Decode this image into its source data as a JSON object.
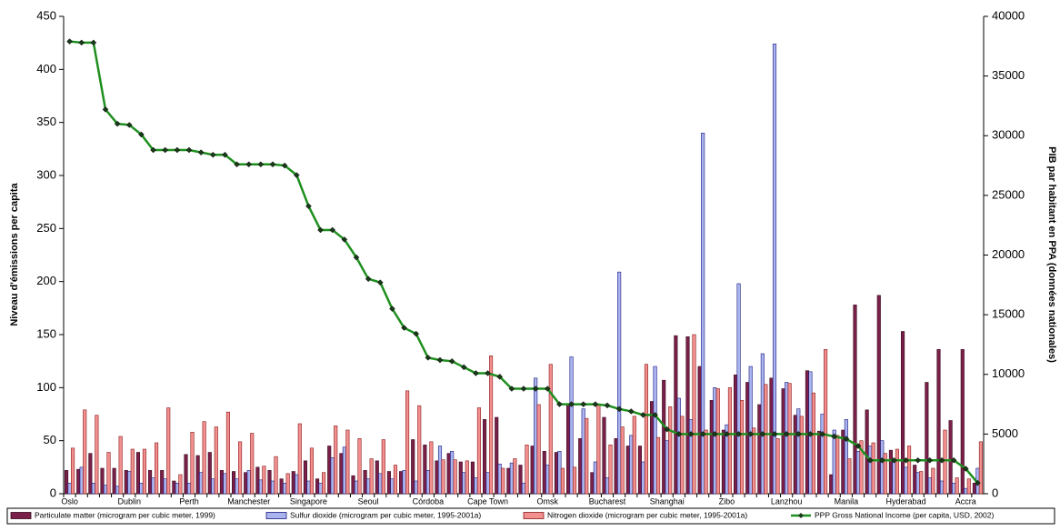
{
  "chart_data": {
    "type": "bar",
    "y_label": "Niveau d'émissions per capita",
    "y2_label": "PIB par habitant en PPA (données nationales)",
    "categories": [
      "Oslo",
      null,
      null,
      null,
      null,
      "Dublin",
      null,
      null,
      null,
      null,
      "Perth",
      null,
      null,
      null,
      null,
      "Manchester",
      null,
      null,
      null,
      null,
      "Singapore",
      null,
      null,
      null,
      null,
      "Seoul",
      null,
      null,
      null,
      null,
      "Córdoba",
      null,
      null,
      null,
      null,
      "Cape Town",
      null,
      null,
      null,
      null,
      "Omsk",
      null,
      null,
      null,
      null,
      "Bucharest",
      null,
      null,
      null,
      null,
      "Shanghai",
      null,
      null,
      null,
      null,
      "Zibo",
      null,
      null,
      null,
      null,
      "Lanzhou",
      null,
      null,
      null,
      null,
      "Manila",
      null,
      null,
      null,
      null,
      "Hyderabad",
      null,
      null,
      null,
      null,
      "Accra",
      null
    ],
    "series": [
      {
        "name": "Particulate matter (microgram per cubic meter, 1999)",
        "color": "#7a2048",
        "values": [
          22,
          23,
          38,
          24,
          24,
          22,
          39,
          22,
          22,
          12,
          37,
          36,
          39,
          22,
          21,
          20,
          25,
          22,
          14,
          21,
          31,
          14,
          45,
          38,
          17,
          22,
          31,
          21,
          21,
          51,
          46,
          31,
          38,
          30,
          30,
          70,
          72,
          24,
          27,
          45,
          40,
          39,
          84,
          52,
          20,
          72,
          52,
          45,
          45,
          87,
          107,
          149,
          148,
          120,
          88,
          60,
          112,
          105,
          84,
          109,
          99,
          74,
          116,
          59,
          18,
          60,
          178,
          79,
          187,
          41,
          153,
          27,
          105,
          136,
          69,
          136,
          10
        ]
      },
      {
        "name": "Sulfur dioxide (microgram per cubic meter, 1995-2001a)",
        "color": "#aab4ee",
        "values": [
          10,
          25,
          10,
          8,
          7,
          21,
          10,
          15,
          14,
          10,
          10,
          20,
          14,
          19,
          14,
          22,
          13,
          12,
          10,
          18,
          12,
          10,
          34,
          44,
          12,
          14,
          19,
          14,
          22,
          12,
          22,
          45,
          40,
          20,
          15,
          20,
          28,
          29,
          10,
          109,
          27,
          40,
          129,
          80,
          30,
          15,
          209,
          55,
          30,
          120,
          50,
          90,
          70,
          340,
          100,
          65,
          198,
          120,
          132,
          424,
          105,
          80,
          115,
          75,
          60,
          70,
          40,
          45,
          50,
          30,
          25,
          20,
          15,
          12,
          10,
          5,
          24
        ]
      },
      {
        "name": "Nitrogen dioxide (microgram per cubic meter, 1995-2001a)",
        "color": "#f28f8f",
        "values": [
          43,
          79,
          74,
          39,
          54,
          42,
          42,
          48,
          81,
          18,
          58,
          68,
          63,
          77,
          49,
          57,
          26,
          35,
          19,
          66,
          43,
          20,
          64,
          60,
          52,
          33,
          51,
          27,
          97,
          83,
          49,
          32,
          32,
          31,
          81,
          130,
          24,
          33,
          46,
          84,
          122,
          24,
          25,
          71,
          84,
          46,
          63,
          73,
          122,
          53,
          82,
          73,
          150,
          60,
          99,
          100,
          88,
          62,
          103,
          52,
          104,
          73,
          95,
          136,
          55,
          33,
          50,
          48,
          38,
          42,
          45,
          21,
          24,
          60,
          15,
          14,
          49
        ]
      },
      {
        "name": "PPP Gross National Income (per capita, USD, 2002)",
        "color": "#1f8f1f",
        "axis": "y2",
        "type": "line",
        "values": [
          37900,
          37800,
          37800,
          32200,
          31000,
          30900,
          30100,
          28800,
          28800,
          28800,
          28800,
          28600,
          28400,
          28400,
          27600,
          27600,
          27600,
          27600,
          27500,
          26700,
          24100,
          22100,
          22100,
          21300,
          19800,
          18000,
          17700,
          15500,
          13900,
          13400,
          11400,
          11200,
          11100,
          10600,
          10100,
          10100,
          9800,
          8800,
          8800,
          8800,
          8800,
          7500,
          7500,
          7500,
          7500,
          7400,
          7100,
          6900,
          6600,
          6600,
          5400,
          5000,
          5000,
          5000,
          5000,
          5000,
          5000,
          5000,
          5000,
          5000,
          5000,
          5000,
          5000,
          5000,
          4800,
          4600,
          4000,
          2800,
          2800,
          2800,
          2800,
          2800,
          2800,
          2800,
          2800,
          2100,
          900
        ]
      }
    ],
    "ylim": [
      0,
      450
    ],
    "yticks": [
      0,
      50,
      100,
      150,
      200,
      250,
      300,
      350,
      400,
      450
    ],
    "y2lim": [
      0,
      40000
    ],
    "y2ticks": [
      0,
      5000,
      10000,
      15000,
      20000,
      25000,
      30000,
      35000,
      40000
    ],
    "legend": "bottom"
  }
}
